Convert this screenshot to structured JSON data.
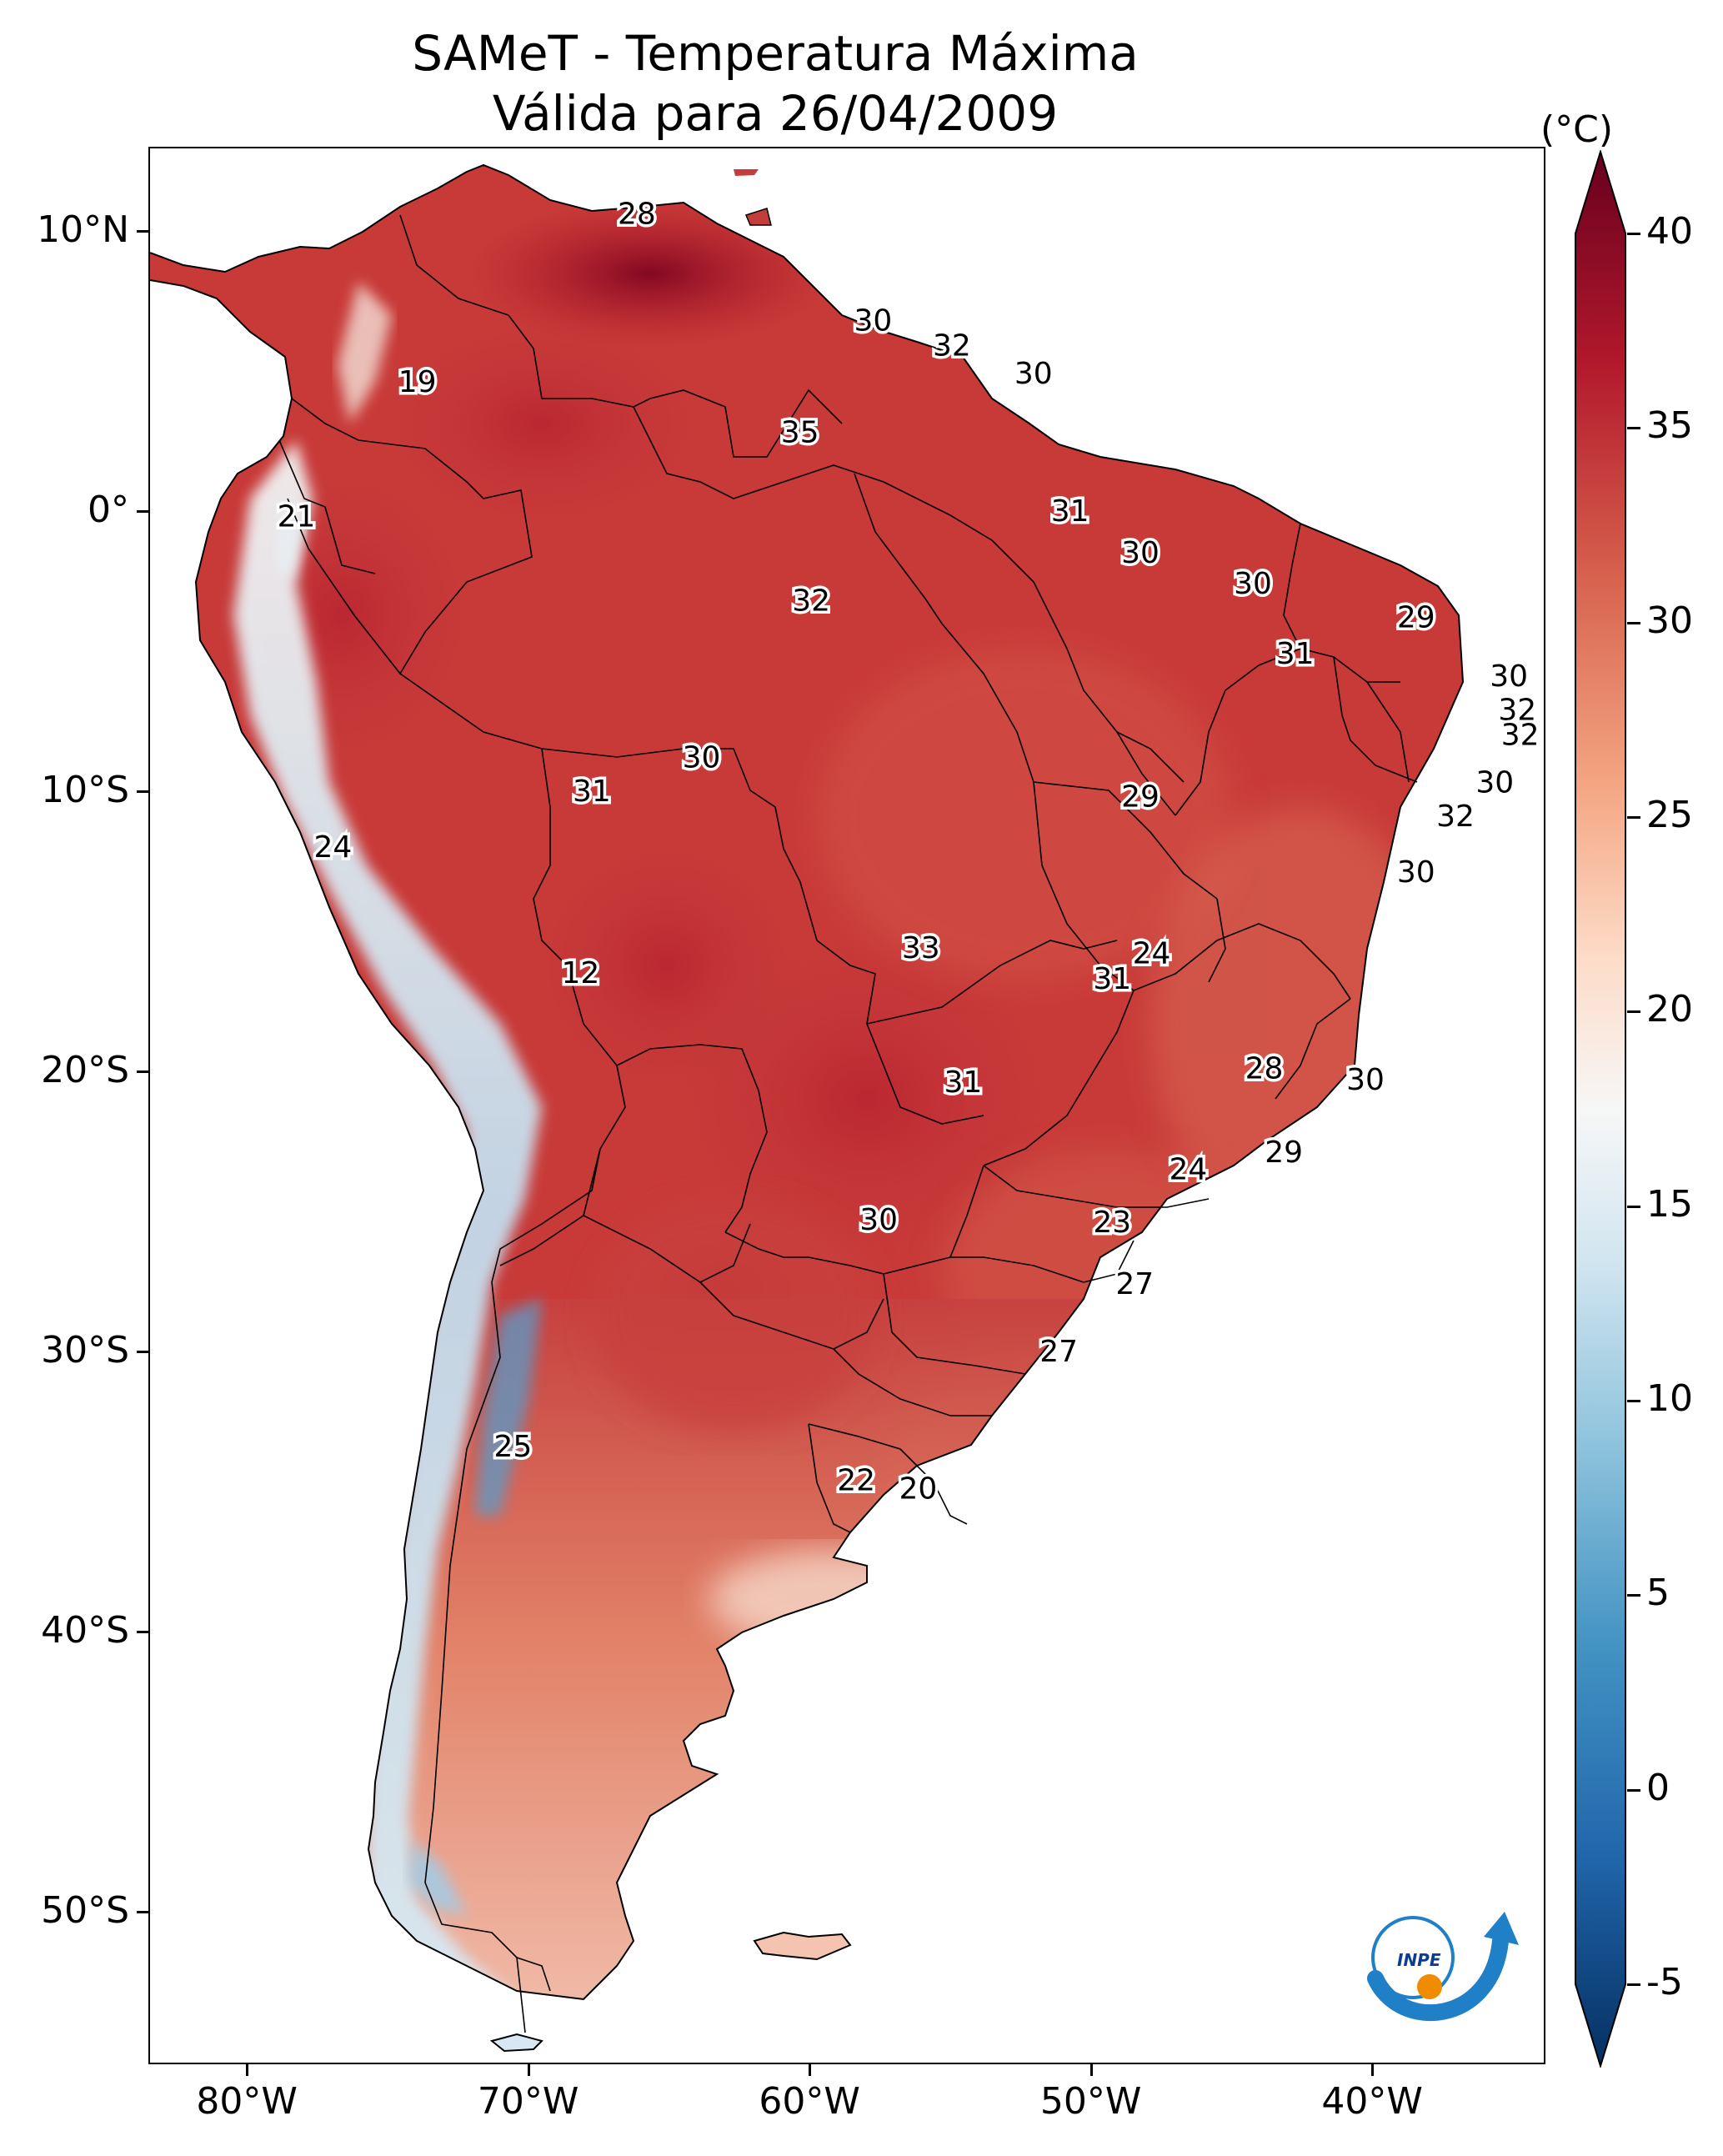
{
  "title": {
    "line1": "SAMeT - Temperatura Máxima",
    "line2": "Válida para 26/04/2009"
  },
  "axes": {
    "lat_labels": [
      "10°N",
      "0°",
      "10°S",
      "20°S",
      "30°S",
      "40°S",
      "50°S"
    ],
    "lon_labels": [
      "80°W",
      "70°W",
      "60°W",
      "50°W",
      "40°W"
    ]
  },
  "colorbar": {
    "unit": "(°C)",
    "ticks": [
      "40",
      "35",
      "30",
      "25",
      "20",
      "15",
      "10",
      "5",
      "0",
      "-5"
    ],
    "min": -5,
    "max": 40,
    "colors": [
      "#053061",
      "#2166ac",
      "#4393c3",
      "#92c5de",
      "#d1e5f0",
      "#f7f7f7",
      "#fddbc7",
      "#f4a582",
      "#d6604d",
      "#b2182b",
      "#67001f"
    ]
  },
  "logo": {
    "text": "INPE"
  },
  "station_values": [
    {
      "label": "28",
      "lon": -66.2,
      "lat": 10.6
    },
    {
      "label": "19",
      "lon": -74.0,
      "lat": 4.6
    },
    {
      "label": "21",
      "lon": -78.3,
      "lat": -0.2
    },
    {
      "label": "30",
      "lon": -57.8,
      "lat": 6.8
    },
    {
      "label": "32",
      "lon": -55.0,
      "lat": 5.9
    },
    {
      "label": "30",
      "lon": -52.1,
      "lat": 4.9
    },
    {
      "label": "35",
      "lon": -60.4,
      "lat": 2.8
    },
    {
      "label": "31",
      "lon": -50.8,
      "lat": 0.0
    },
    {
      "label": "30",
      "lon": -48.3,
      "lat": -1.5
    },
    {
      "label": "30",
      "lon": -44.3,
      "lat": -2.6
    },
    {
      "label": "32",
      "lon": -60.0,
      "lat": -3.2
    },
    {
      "label": "29",
      "lon": -38.5,
      "lat": -3.8
    },
    {
      "label": "31",
      "lon": -42.8,
      "lat": -5.1
    },
    {
      "label": "30",
      "lon": -35.2,
      "lat": -5.9
    },
    {
      "label": "32",
      "lon": -34.9,
      "lat": -7.1
    },
    {
      "label": "32",
      "lon": -34.8,
      "lat": -8.0
    },
    {
      "label": "30",
      "lon": -63.9,
      "lat": -8.8
    },
    {
      "label": "31",
      "lon": -67.8,
      "lat": -10.0
    },
    {
      "label": "29",
      "lon": -48.3,
      "lat": -10.2
    },
    {
      "label": "30",
      "lon": -35.7,
      "lat": -9.7
    },
    {
      "label": "32",
      "lon": -37.1,
      "lat": -10.9
    },
    {
      "label": "24",
      "lon": -77.0,
      "lat": -12.0
    },
    {
      "label": "30",
      "lon": -38.5,
      "lat": -12.9
    },
    {
      "label": "12",
      "lon": -68.2,
      "lat": -16.5
    },
    {
      "label": "33",
      "lon": -56.1,
      "lat": -15.6
    },
    {
      "label": "24",
      "lon": -47.9,
      "lat": -15.8
    },
    {
      "label": "31",
      "lon": -49.3,
      "lat": -16.7
    },
    {
      "label": "28",
      "lon": -43.9,
      "lat": -19.9
    },
    {
      "label": "30",
      "lon": -40.3,
      "lat": -20.3
    },
    {
      "label": "31",
      "lon": -54.6,
      "lat": -20.4
    },
    {
      "label": "29",
      "lon": -43.2,
      "lat": -22.9
    },
    {
      "label": "24",
      "lon": -46.6,
      "lat": -23.5
    },
    {
      "label": "30",
      "lon": -57.6,
      "lat": -25.3
    },
    {
      "label": "23",
      "lon": -49.3,
      "lat": -25.4
    },
    {
      "label": "27",
      "lon": -48.5,
      "lat": -27.6
    },
    {
      "label": "27",
      "lon": -51.2,
      "lat": -30.0
    },
    {
      "label": "25",
      "lon": -70.6,
      "lat": -33.4
    },
    {
      "label": "22",
      "lon": -58.4,
      "lat": -34.6
    },
    {
      "label": "20",
      "lon": -56.2,
      "lat": -34.9
    }
  ]
}
